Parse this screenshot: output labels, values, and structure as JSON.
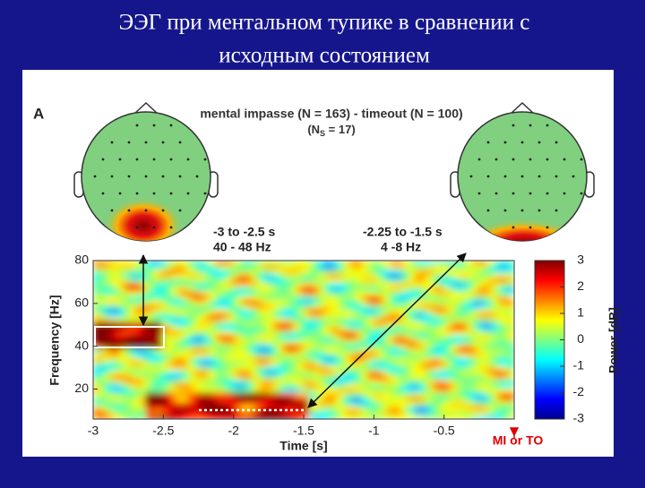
{
  "slide": {
    "title_lines": [
      "ЭЭГ при ментальном тупике в сравнении с",
      "исходным состоянием"
    ]
  },
  "figure": {
    "panel_label": "A",
    "heading": "mental impasse (N = 163) - timeout (N = 100)",
    "heading_note_parts": [
      "(N",
      "S",
      " = 17)"
    ],
    "topo_left": {
      "time": "-3 to -2.5 s",
      "freq": "40 - 48 Hz"
    },
    "topo_right": {
      "time": "-2.25 to -1.5 s",
      "freq": "4 -8 Hz"
    },
    "heatmap": {
      "xlabel": "Time [s]",
      "ylabel": "Frequency [Hz]",
      "xlim": [
        -3,
        0
      ],
      "ylim": [
        6,
        80
      ],
      "xticks": [
        -3,
        -2.5,
        -2,
        -1.5,
        -1,
        -0.5
      ],
      "yticks": [
        20,
        40,
        60,
        80
      ],
      "onset_label": "MI or TO"
    },
    "colorbar": {
      "label": "Power [dB]",
      "lim": [
        -3,
        3
      ],
      "ticks": [
        -3,
        -2,
        -1,
        0,
        1,
        2,
        3
      ]
    }
  }
}
